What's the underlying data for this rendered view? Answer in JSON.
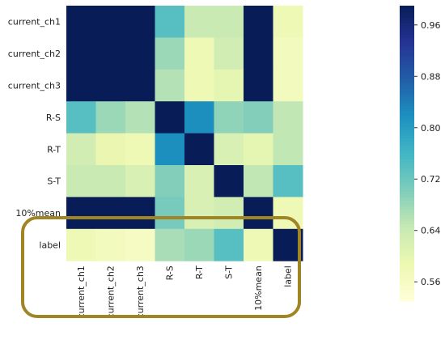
{
  "chart_data": {
    "type": "heatmap",
    "rows": [
      "current_ch1",
      "current_ch2",
      "current_ch3",
      "R-S",
      "R-T",
      "S-T",
      "10%mean",
      "label"
    ],
    "columns": [
      "current_ch1",
      "current_ch2",
      "current_ch3",
      "R-S",
      "R-T",
      "S-T",
      "10%mean",
      "label"
    ],
    "values": [
      [
        1.0,
        0.99,
        0.99,
        0.74,
        0.64,
        0.64,
        1.0,
        0.58
      ],
      [
        0.99,
        1.0,
        1.0,
        0.68,
        0.58,
        0.63,
        1.0,
        0.57
      ],
      [
        0.99,
        1.0,
        1.0,
        0.66,
        0.58,
        0.6,
        1.0,
        0.57
      ],
      [
        0.74,
        0.68,
        0.66,
        1.0,
        0.82,
        0.69,
        0.7,
        0.65
      ],
      [
        0.63,
        0.59,
        0.58,
        0.82,
        1.0,
        0.62,
        0.6,
        0.65
      ],
      [
        0.64,
        0.64,
        0.62,
        0.7,
        0.62,
        1.0,
        0.65,
        0.74
      ],
      [
        1.0,
        1.0,
        1.0,
        0.71,
        0.62,
        0.63,
        1.0,
        0.58
      ],
      [
        0.58,
        0.57,
        0.56,
        0.67,
        0.68,
        0.74,
        0.58,
        1.0
      ]
    ],
    "colorbar": {
      "range": [
        0.53,
        0.99
      ],
      "ticks": [
        0.56,
        0.64,
        0.72,
        0.8,
        0.88,
        0.96
      ],
      "tick_labels": [
        "0.56",
        "0.64",
        "0.72",
        "0.80",
        "0.88",
        "0.96"
      ]
    },
    "colormap": "YlGnBu",
    "highlight": {
      "rows": [
        "label"
      ],
      "columns": [
        "current_ch1",
        "current_ch2",
        "current_ch3",
        "R-S",
        "R-T",
        "S-T"
      ],
      "color": "#a08524"
    }
  }
}
